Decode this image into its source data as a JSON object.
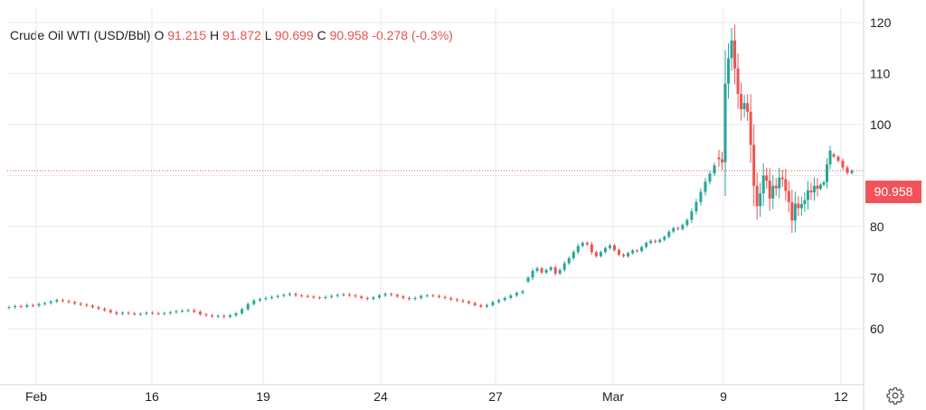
{
  "legend": {
    "symbol": "Crude Oil WTI (USD/Bbl)",
    "open_label": "O",
    "open": "91.215",
    "high_label": "H",
    "high": "91.872",
    "low_label": "L",
    "low": "90.699",
    "close_label": "C",
    "close": "90.958",
    "change": "-0.278 (-0.3%)"
  },
  "last_price": "90.958",
  "colors": {
    "up": "#26a69a",
    "down": "#ef5350",
    "price_line": "#e8524e",
    "grid": "#e9e9e9",
    "text": "#222222"
  },
  "icons": {
    "settings": "gear-icon"
  },
  "chart_data": {
    "type": "candlestick",
    "x_tick_labels": [
      "Feb",
      "16",
      "19",
      "24",
      "27",
      "Mar",
      "9",
      "12"
    ],
    "y_ticks": [
      60,
      70,
      80,
      90,
      100,
      110,
      120
    ],
    "y_tick_labels": [
      "60",
      "70",
      "80",
      "100",
      "110",
      "120"
    ],
    "ylim": [
      49,
      123
    ],
    "last_close": 90.958,
    "grid": true,
    "series": [
      {
        "values": [
          64.2,
          64.4,
          64.3,
          64.6,
          64.5,
          64.8,
          65.0,
          65.3,
          65.6,
          65.4,
          65.2,
          64.9,
          64.7,
          64.5,
          64.2,
          63.9,
          63.6,
          63.2,
          62.9,
          63.1,
          63.0,
          62.8,
          62.9,
          63.1,
          63.0,
          62.9,
          63.0,
          63.2,
          63.4,
          63.5,
          63.6,
          63.3,
          62.8,
          62.6,
          62.4,
          62.5,
          62.3,
          62.6,
          63.0,
          63.8,
          64.8,
          65.5,
          65.8,
          66.0,
          66.2,
          66.4,
          66.6,
          66.8,
          66.5,
          66.4,
          66.3,
          66.1,
          66.0,
          66.2,
          66.4,
          66.6,
          66.7,
          66.5,
          66.3,
          66.0,
          65.8,
          66.1,
          66.5,
          66.8,
          66.6,
          66.3,
          66.0,
          65.8,
          66.0,
          66.4,
          66.5,
          66.4,
          66.2,
          66.0,
          65.7,
          65.5,
          65.3,
          65.0,
          64.6,
          64.3,
          64.6,
          65.2,
          65.6,
          66.0,
          66.5,
          67.0,
          67.3,
          70.0,
          71.3,
          71.8,
          71.0,
          71.5,
          72.0,
          70.8,
          71.5,
          72.8,
          73.8,
          75.0,
          76.2,
          76.8,
          76.5,
          75.0,
          74.2,
          75.0,
          75.8,
          76.3,
          75.4,
          74.5,
          74.2,
          74.8,
          75.3,
          75.2,
          76.0,
          76.8,
          77.2,
          77.0,
          77.4,
          78.0,
          79.0,
          79.7,
          79.5,
          80.3,
          81.3,
          83.0,
          84.8,
          86.8,
          88.8,
          90.4,
          92.0,
          93.2,
          92.6,
          108.0,
          113.0,
          116.5,
          111.0,
          106.0,
          103.0,
          104.2,
          102.5,
          96.0,
          88.0,
          84.0,
          86.5,
          90.0,
          89.0,
          85.5,
          88.0,
          87.5,
          89.6,
          89.3,
          87.0,
          84.8,
          81.2,
          84.5,
          83.6,
          84.4,
          85.2,
          87.1,
          86.7,
          88.0,
          87.4,
          88.2,
          88.7,
          92.2,
          94.9,
          93.7,
          92.9,
          91.6,
          90.5,
          90.958
        ]
      }
    ]
  }
}
